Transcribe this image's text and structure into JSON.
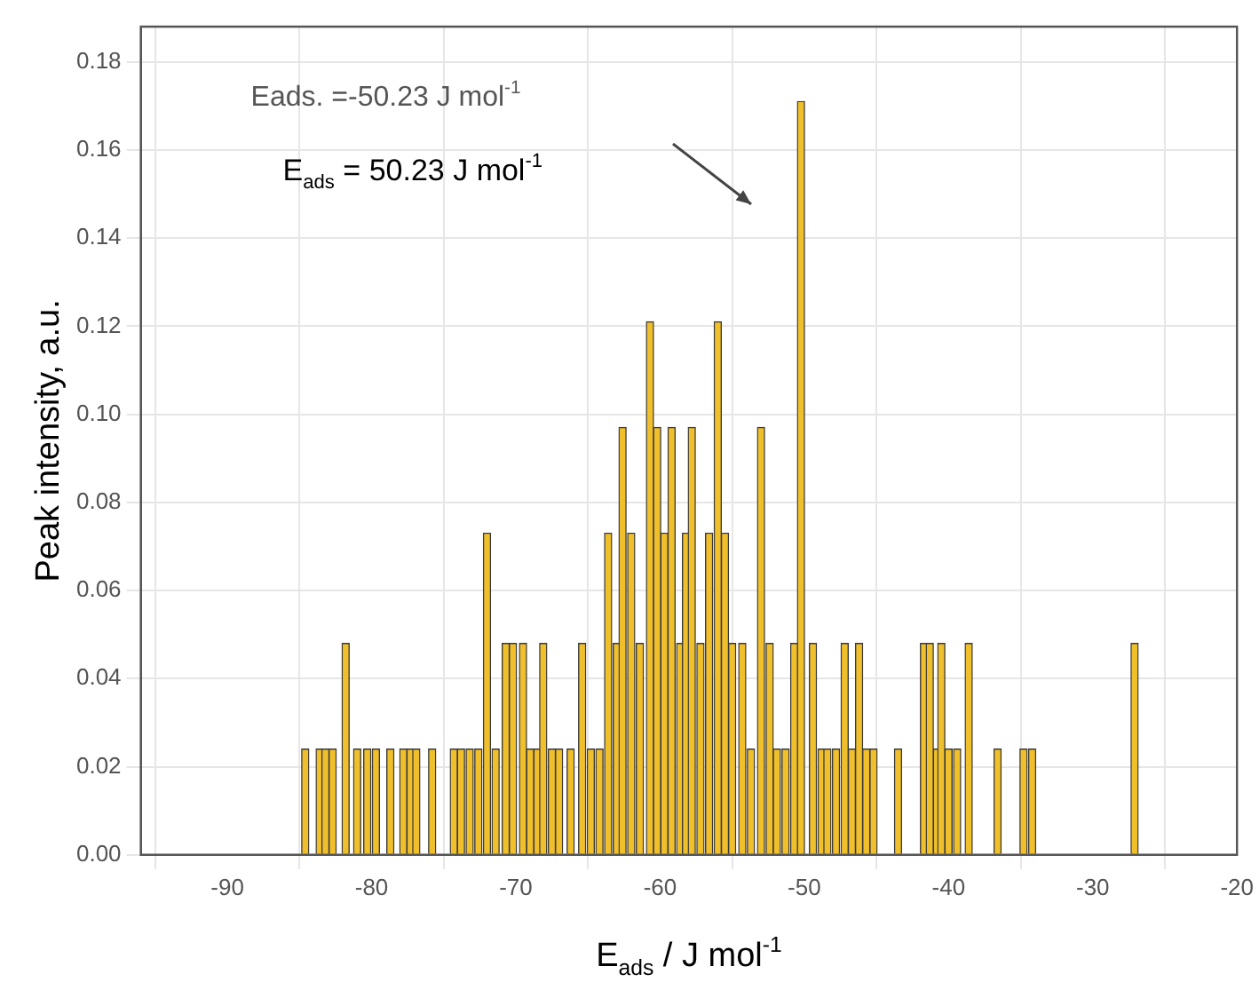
{
  "chart_data": {
    "type": "bar",
    "xlabel": "E$_{ads}$ / J mol$^{-1}$",
    "ylabel": "Peak intensity, a.u.",
    "annotations": [
      "Eads. =-50.23 J mol$^{-1}$",
      "E$_{ads}$ = 50.23 J mol$^{-1}$"
    ],
    "x": [
      -84.6,
      -83.6,
      -83.2,
      -82.7,
      -81.8,
      -81.0,
      -80.3,
      -79.7,
      -78.7,
      -77.8,
      -77.3,
      -76.9,
      -75.8,
      -74.3,
      -73.8,
      -73.2,
      -72.6,
      -72.0,
      -71.4,
      -70.7,
      -70.2,
      -69.5,
      -69.0,
      -68.5,
      -68.1,
      -67.5,
      -67.0,
      -66.2,
      -65.4,
      -64.8,
      -64.2,
      -63.6,
      -63.0,
      -62.6,
      -62.0,
      -61.4,
      -60.7,
      -60.2,
      -59.7,
      -59.2,
      -58.6,
      -58.2,
      -57.8,
      -57.2,
      -56.6,
      -56.0,
      -55.5,
      -55.0,
      -54.3,
      -53.7,
      -53.0,
      -52.4,
      -51.9,
      -51.3,
      -50.7,
      -50.23,
      -49.4,
      -48.8,
      -48.4,
      -47.8,
      -47.2,
      -46.7,
      -46.2,
      -45.7,
      -45.2,
      -43.5,
      -41.7,
      -41.3,
      -40.8,
      -40.5,
      -40.0,
      -39.4,
      -38.6,
      -36.6,
      -34.8,
      -34.2,
      -27.1
    ],
    "values": [
      0.024,
      0.024,
      0.024,
      0.024,
      0.048,
      0.024,
      0.024,
      0.024,
      0.024,
      0.024,
      0.024,
      0.024,
      0.024,
      0.024,
      0.024,
      0.024,
      0.024,
      0.073,
      0.024,
      0.048,
      0.048,
      0.048,
      0.024,
      0.024,
      0.048,
      0.024,
      0.024,
      0.024,
      0.048,
      0.024,
      0.024,
      0.073,
      0.048,
      0.097,
      0.073,
      0.048,
      0.121,
      0.097,
      0.073,
      0.097,
      0.048,
      0.073,
      0.097,
      0.048,
      0.073,
      0.121,
      0.073,
      0.048,
      0.048,
      0.024,
      0.097,
      0.048,
      0.024,
      0.024,
      0.048,
      0.171,
      0.048,
      0.024,
      0.024,
      0.024,
      0.048,
      0.024,
      0.048,
      0.024,
      0.024,
      0.024,
      0.048,
      0.048,
      0.024,
      0.048,
      0.024,
      0.024,
      0.048,
      0.024,
      0.024,
      0.024,
      0.048
    ],
    "color": "#f0bf2c",
    "xlim": [
      -96,
      -20
    ],
    "xticks": [
      -90,
      -80,
      -70,
      -60,
      -50,
      -40,
      -30,
      -20
    ],
    "ylim": [
      0,
      0.188
    ],
    "yticks": [
      {
        "value": 0,
        "label": "0.00"
      },
      0.02,
      0.04,
      0.06,
      0.08,
      {
        "value": 0.1,
        "label": "0.10"
      },
      0.12,
      0.14,
      0.16,
      0.18
    ],
    "grid": true,
    "legend": false
  }
}
